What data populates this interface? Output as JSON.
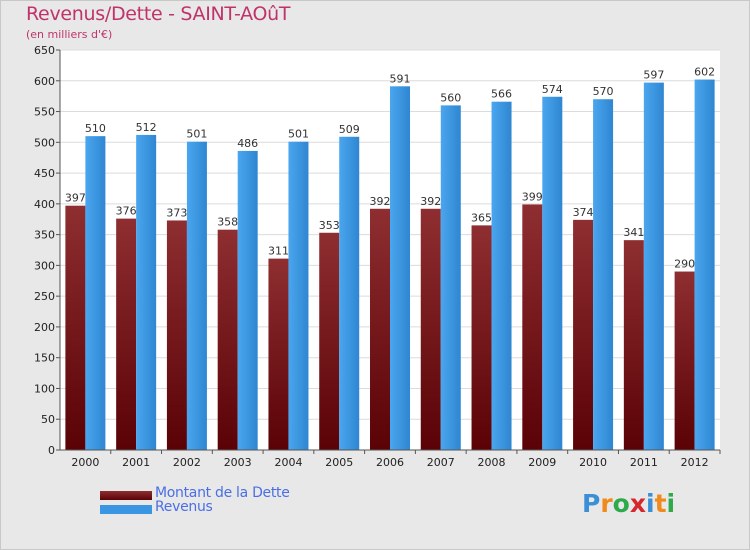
{
  "header": {
    "title": "Revenus/Dette - SAINT-AOûT",
    "subtitle": "(en milliers d'€)"
  },
  "legend": {
    "items": [
      {
        "label": "Montant de la Dette",
        "color": "#7a0e14"
      },
      {
        "label": "Revenus",
        "color": "#3a96e2"
      }
    ]
  },
  "logo": {
    "text": "Proxiti",
    "letters": [
      {
        "ch": "P",
        "color": "#3a8fd6"
      },
      {
        "ch": "r",
        "color": "#f08a1c"
      },
      {
        "ch": "o",
        "color": "#2eaa4a"
      },
      {
        "ch": "x",
        "color": "#d8262e"
      },
      {
        "ch": "i",
        "color": "#3a8fd6"
      },
      {
        "ch": "t",
        "color": "#f08a1c"
      },
      {
        "ch": "i",
        "color": "#2eaa4a"
      }
    ]
  },
  "chart_data": {
    "type": "bar",
    "title": "Revenus/Dette - SAINT-AOûT",
    "subtitle": "(en milliers d'€)",
    "categories": [
      "2000",
      "2001",
      "2002",
      "2003",
      "2004",
      "2005",
      "2006",
      "2007",
      "2008",
      "2009",
      "2010",
      "2011",
      "2012"
    ],
    "series": [
      {
        "name": "Montant de la Dette",
        "color": "#7a0e14",
        "values": [
          397,
          376,
          373,
          358,
          311,
          353,
          392,
          392,
          365,
          399,
          374,
          341,
          290
        ]
      },
      {
        "name": "Revenus",
        "color": "#3a96e2",
        "values": [
          510,
          512,
          501,
          486,
          501,
          509,
          591,
          560,
          566,
          574,
          570,
          597,
          602
        ]
      }
    ],
    "ylim": [
      0,
      650
    ],
    "yticks": [
      0,
      50,
      100,
      150,
      200,
      250,
      300,
      350,
      400,
      450,
      500,
      550,
      600,
      650
    ],
    "grid": true,
    "legend_position": "bottom-left"
  }
}
